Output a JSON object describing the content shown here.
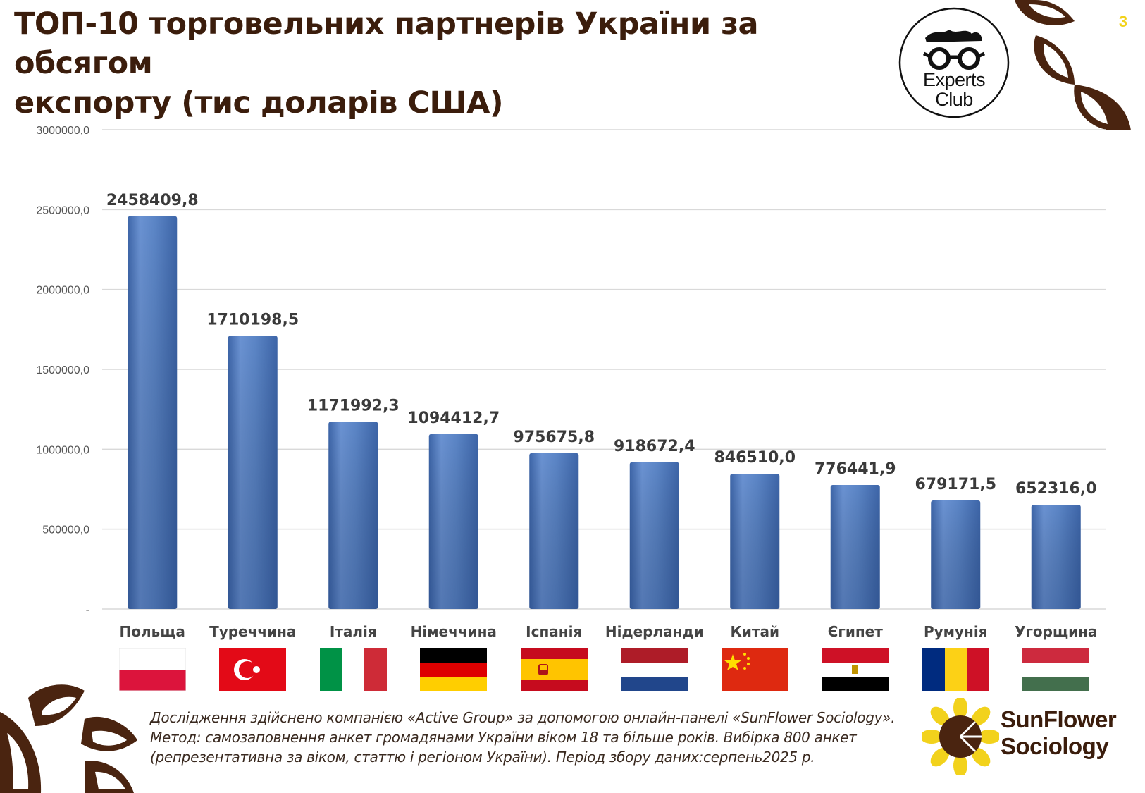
{
  "title_lines": [
    "ТОП-10 торговельних партнерів України за обсягом",
    "експорту (тис доларів США)"
  ],
  "page_number": "3",
  "experts_logo": {
    "line1": "Experts",
    "line2": "Club"
  },
  "sunflower_logo": {
    "line1": "SunFlower",
    "line2": "Sociology"
  },
  "footnote": "Дослідження здійснено компанією «Active Group» за допомогою онлайн-панелі «SunFlower Sociology». Метод: самозаповнення анкет громадянами України віком 18 та більше років. Вибірка 800 анкет (репрезентативна за віком, статтю і регіоном України). Період збору даних:серпень2025 р.",
  "colors": {
    "title": "#3b1d0c",
    "bar": "#5b85c6",
    "bar_dark": "#3d65a8",
    "label": "#3a3a3a",
    "grid": "#d9d9d9",
    "page_number": "#f2d21c",
    "decor": "#4a2410"
  },
  "chart_data": {
    "type": "bar",
    "categories": [
      "Польща",
      "Туреччина",
      "Італія",
      "Німеччина",
      "Іспанія",
      "Нідерланди",
      "Китай",
      "Єгипет",
      "Румунія",
      "Угорщина"
    ],
    "values": [
      2458409.8,
      1710198.5,
      1171992.3,
      1094412.7,
      975675.8,
      918672.4,
      846510.0,
      776441.9,
      679171.5,
      652316.0
    ],
    "value_labels": [
      "2458409,8",
      "1710198,5",
      "1171992,3",
      "1094412,7",
      "975675,8",
      "918672,4",
      "846510,0",
      "776441,9",
      "679171,5",
      "652316,0"
    ],
    "ylim": [
      0,
      3000000
    ],
    "yticks": [
      0,
      500000,
      1000000,
      1500000,
      2000000,
      2500000,
      3000000
    ],
    "ytick_labels": [
      "-",
      "500000,0",
      "1000000,0",
      "1500000,0",
      "2000000,0",
      "2500000,0",
      "3000000,0"
    ],
    "grid": true,
    "legend": "none",
    "flags": [
      "poland",
      "turkey",
      "italy",
      "germany",
      "spain",
      "netherlands",
      "china",
      "egypt",
      "romania",
      "hungary"
    ]
  }
}
